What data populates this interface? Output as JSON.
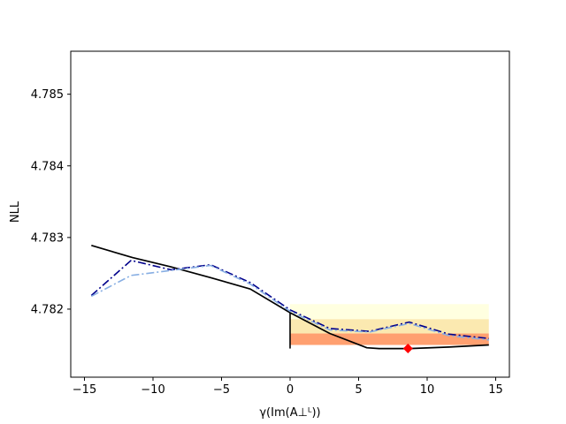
{
  "chart_data": {
    "type": "line",
    "title": "",
    "xlabel": "γ(Im(A⊥ᴸ))",
    "ylabel": "NLL",
    "xlim": [
      -16,
      16
    ],
    "ylim": [
      4.78105,
      4.7856
    ],
    "xticks": [
      -15,
      -10,
      -5,
      0,
      5,
      10,
      15
    ],
    "yticks": [
      4.782,
      4.783,
      4.784,
      4.785
    ],
    "ytick_labels": [
      "4.782",
      "4.783",
      "4.784",
      "4.785"
    ],
    "grid": false,
    "colors": {
      "profile": "#000000",
      "scan_dark": "#00008b",
      "scan_light": "#87aee3",
      "band_1": "#ffffe0",
      "band_2": "#fbe9b0",
      "band_3": "#ffa070",
      "minimum_marker": "#ff0000"
    },
    "series": [
      {
        "style": "solid",
        "color": "#000000",
        "x": [
          -14.5,
          -11.5,
          -8.7,
          -5.8,
          -2.9,
          0,
          2.9,
          5.6,
          6.5,
          8.7,
          11.6,
          14.5
        ],
        "y": [
          4.78289,
          4.78272,
          4.78259,
          4.78244,
          4.78228,
          4.78195,
          4.78166,
          4.78146,
          4.78145,
          4.78145,
          4.78147,
          4.7815
        ]
      },
      {
        "style": "dashdot",
        "color": "#00008b",
        "x": [
          -14.5,
          -11.6,
          -8.7,
          -5.8,
          -2.9,
          0,
          2.9,
          5.8,
          8.7,
          11.6,
          14.5
        ],
        "y": [
          4.78219,
          4.78268,
          4.78255,
          4.78262,
          4.78237,
          4.78199,
          4.78173,
          4.78169,
          4.78182,
          4.78165,
          4.78159
        ]
      },
      {
        "style": "dashdot",
        "color": "#87aee3",
        "x": [
          -14.5,
          -11.6,
          -8.7,
          -5.8,
          -2.9,
          0,
          2.9,
          5.8,
          8.7,
          11.6,
          14.5
        ],
        "y": [
          4.78218,
          4.78247,
          4.78254,
          4.78261,
          4.78235,
          4.78197,
          4.78171,
          4.78168,
          4.7818,
          4.78163,
          4.78157
        ]
      }
    ],
    "bands": [
      {
        "x": [
          0,
          14.5
        ],
        "y": [
          4.78186,
          4.78207
        ],
        "color": "#ffffe0"
      },
      {
        "x": [
          0,
          14.5
        ],
        "y": [
          4.78166,
          4.78186
        ],
        "color": "#fbe9b0"
      },
      {
        "x": [
          0,
          14.5
        ],
        "y": [
          4.7815,
          4.78166
        ],
        "color": "#ffa070"
      }
    ],
    "vertical_line": {
      "x": 0,
      "y": [
        4.78145,
        4.78195
      ]
    },
    "minimum_marker": {
      "x": 8.6,
      "y": 4.78145,
      "shape": "diamond"
    }
  }
}
